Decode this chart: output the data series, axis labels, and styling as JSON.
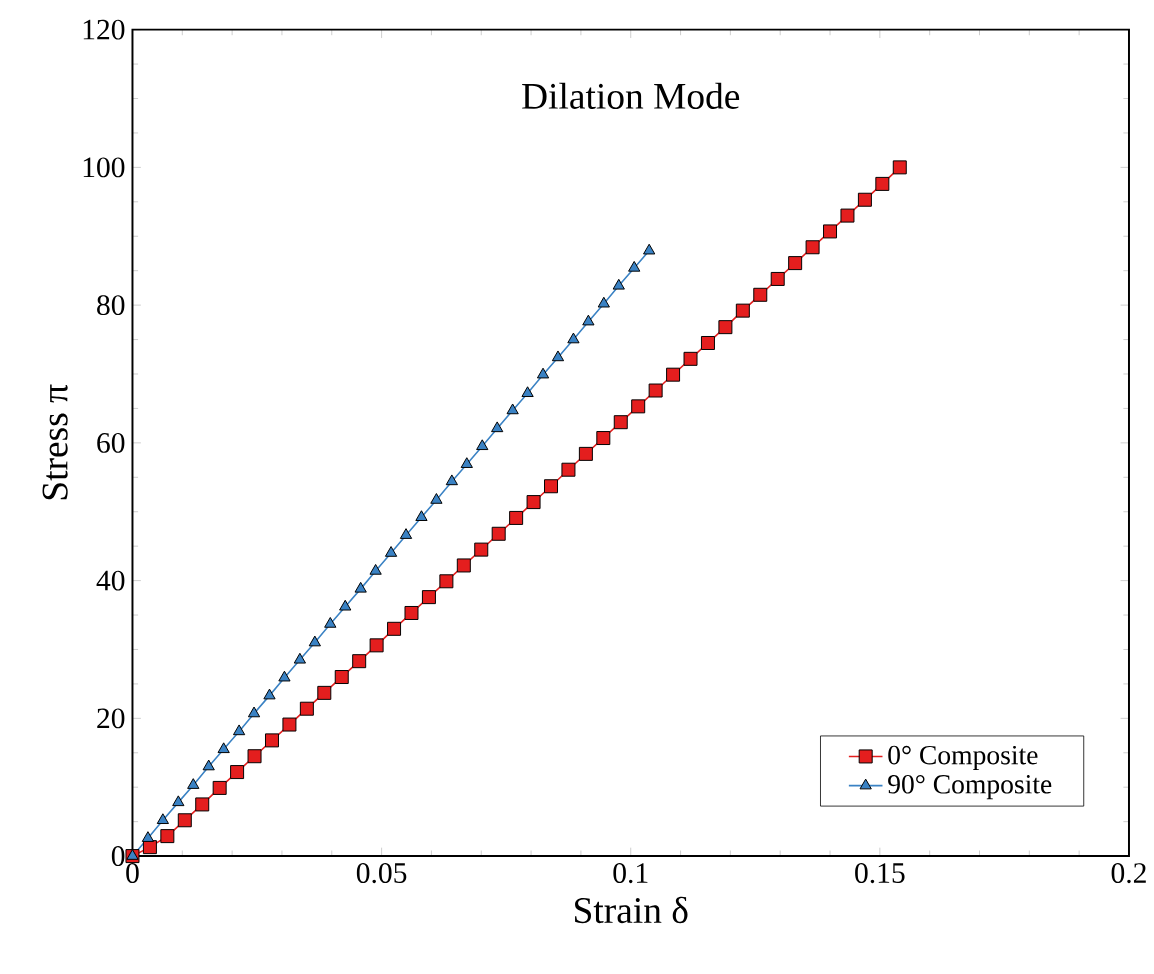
{
  "chart_data": {
    "type": "line",
    "title": "Dilation Mode",
    "xlabel": "Strain δ",
    "ylabel": "Stress π",
    "xlim": [
      0,
      0.2
    ],
    "ylim": [
      0,
      120
    ],
    "xticks": [
      0,
      0.05,
      0.1,
      0.15,
      0.2
    ],
    "yticks": [
      0,
      20,
      40,
      60,
      80,
      100,
      120
    ],
    "grid": false,
    "legend": "bottom right",
    "line_style": "solid",
    "series": [
      {
        "name": "0° Composite",
        "color": "#e41e1e",
        "marker": "square",
        "x": [
          0,
          0.0035,
          0.007,
          0.0105,
          0.014,
          0.0175,
          0.021,
          0.0245,
          0.028,
          0.0315,
          0.035,
          0.0385,
          0.042,
          0.0455,
          0.049,
          0.0525,
          0.056,
          0.0595,
          0.063,
          0.0665,
          0.07,
          0.0735,
          0.077,
          0.0805,
          0.084,
          0.0875,
          0.091,
          0.0945,
          0.098,
          0.1015,
          0.105,
          0.1085,
          0.112,
          0.1155,
          0.119,
          0.1225,
          0.126,
          0.1295,
          0.133,
          0.1365,
          0.14,
          0.1435,
          0.147,
          0.1505,
          0.154
        ],
        "values": [
          0,
          1.3,
          2.9,
          5.2,
          7.5,
          9.9,
          12.2,
          14.5,
          16.8,
          19.1,
          21.4,
          23.7,
          26.0,
          28.3,
          30.6,
          33.0,
          35.3,
          37.6,
          39.9,
          42.2,
          44.5,
          46.8,
          49.1,
          51.4,
          53.7,
          56.1,
          58.4,
          60.7,
          63.0,
          65.3,
          67.6,
          69.9,
          72.2,
          74.5,
          76.8,
          79.2,
          81.5,
          83.8,
          86.1,
          88.4,
          90.7,
          93.0,
          95.3,
          97.6,
          100
        ]
      },
      {
        "name": "90° Composite",
        "color": "#3a82c4",
        "marker": "triangle",
        "x": [
          0,
          0.0031,
          0.0061,
          0.0092,
          0.0122,
          0.0153,
          0.0183,
          0.0214,
          0.0244,
          0.0275,
          0.0305,
          0.0336,
          0.0366,
          0.0397,
          0.0427,
          0.0458,
          0.0488,
          0.0519,
          0.0549,
          0.058,
          0.061,
          0.0641,
          0.0671,
          0.0702,
          0.0732,
          0.0763,
          0.0793,
          0.0824,
          0.0854,
          0.0885,
          0.0915,
          0.0946,
          0.0976,
          0.1007,
          0.1037
        ],
        "values": [
          0,
          2.6,
          5.2,
          7.8,
          10.3,
          13.0,
          15.5,
          18.1,
          20.7,
          23.3,
          25.9,
          28.5,
          31.0,
          33.7,
          36.2,
          38.8,
          41.4,
          44.0,
          46.6,
          49.2,
          51.7,
          54.4,
          56.9,
          59.5,
          62.1,
          64.7,
          67.2,
          69.9,
          72.4,
          75.0,
          77.6,
          80.2,
          82.8,
          85.4,
          87.9
        ]
      }
    ]
  }
}
